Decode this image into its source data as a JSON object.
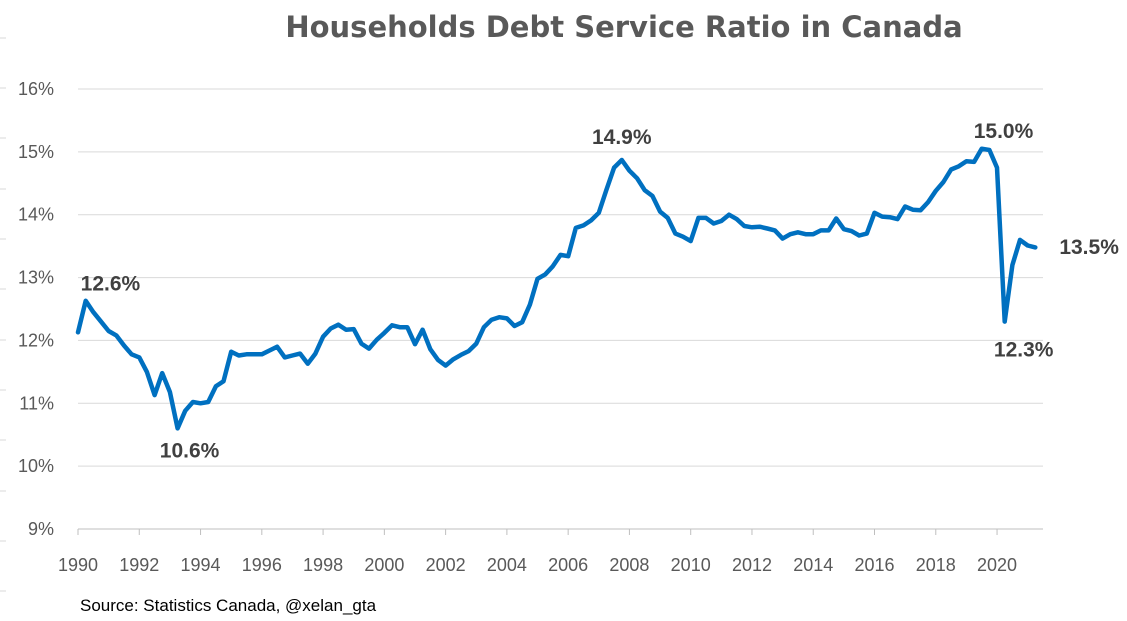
{
  "chart_data": {
    "type": "line",
    "title": "Households Debt Service Ratio in Canada",
    "xlabel": "",
    "ylabel": "",
    "xlim": [
      1990,
      2021.5
    ],
    "ylim": [
      9,
      16
    ],
    "grid": true,
    "legend": "none",
    "x_ticks": [
      1990,
      1992,
      1994,
      1996,
      1998,
      2000,
      2002,
      2004,
      2006,
      2008,
      2010,
      2012,
      2014,
      2016,
      2018,
      2020
    ],
    "x_tick_labels": [
      "1990",
      "1992",
      "1994",
      "1996",
      "1998",
      "2000",
      "2002",
      "2004",
      "2006",
      "2008",
      "2010",
      "2012",
      "2014",
      "2016",
      "2018",
      "2020"
    ],
    "y_ticks": [
      9,
      10,
      11,
      12,
      13,
      14,
      15,
      16
    ],
    "y_tick_labels": [
      "9%",
      "10%",
      "11%",
      "12%",
      "13%",
      "14%",
      "15%",
      "16%"
    ],
    "series": [
      {
        "name": "Debt service ratio (%)",
        "color": "#0070c0",
        "x": [
          1990.0,
          1990.25,
          1990.5,
          1990.75,
          1991.0,
          1991.25,
          1991.5,
          1991.75,
          1992.0,
          1992.25,
          1992.5,
          1992.75,
          1993.0,
          1993.25,
          1993.5,
          1993.75,
          1994.0,
          1994.25,
          1994.5,
          1994.75,
          1995.0,
          1995.25,
          1995.5,
          1995.75,
          1996.0,
          1996.25,
          1996.5,
          1996.75,
          1997.0,
          1997.25,
          1997.5,
          1997.75,
          1998.0,
          1998.25,
          1998.5,
          1998.75,
          1999.0,
          1999.25,
          1999.5,
          1999.75,
          2000.0,
          2000.25,
          2000.5,
          2000.75,
          2001.0,
          2001.25,
          2001.5,
          2001.75,
          2002.0,
          2002.25,
          2002.5,
          2002.75,
          2003.0,
          2003.25,
          2003.5,
          2003.75,
          2004.0,
          2004.25,
          2004.5,
          2004.75,
          2005.0,
          2005.25,
          2005.5,
          2005.75,
          2006.0,
          2006.25,
          2006.5,
          2006.75,
          2007.0,
          2007.25,
          2007.5,
          2007.75,
          2008.0,
          2008.25,
          2008.5,
          2008.75,
          2009.0,
          2009.25,
          2009.5,
          2009.75,
          2010.0,
          2010.25,
          2010.5,
          2010.75,
          2011.0,
          2011.25,
          2011.5,
          2011.75,
          2012.0,
          2012.25,
          2012.5,
          2012.75,
          2013.0,
          2013.25,
          2013.5,
          2013.75,
          2014.0,
          2014.25,
          2014.5,
          2014.75,
          2015.0,
          2015.25,
          2015.5,
          2015.75,
          2016.0,
          2016.25,
          2016.5,
          2016.75,
          2017.0,
          2017.25,
          2017.5,
          2017.75,
          2018.0,
          2018.25,
          2018.5,
          2018.75,
          2019.0,
          2019.25,
          2019.5,
          2019.75,
          2020.0,
          2020.25,
          2020.5,
          2020.75,
          2021.0,
          2021.25
        ],
        "values": [
          12.13,
          12.63,
          12.45,
          12.3,
          12.15,
          12.08,
          11.92,
          11.78,
          11.73,
          11.5,
          11.13,
          11.48,
          11.18,
          10.6,
          10.88,
          11.02,
          11.0,
          11.02,
          11.27,
          11.35,
          11.82,
          11.76,
          11.78,
          11.78,
          11.78,
          11.84,
          11.9,
          11.73,
          11.76,
          11.79,
          11.63,
          11.79,
          12.06,
          12.19,
          12.25,
          12.17,
          12.18,
          11.95,
          11.87,
          12.01,
          12.12,
          12.24,
          12.21,
          12.21,
          11.94,
          12.17,
          11.86,
          11.69,
          11.6,
          11.7,
          11.77,
          11.83,
          11.95,
          12.21,
          12.33,
          12.37,
          12.35,
          12.23,
          12.29,
          12.57,
          12.98,
          13.05,
          13.18,
          13.36,
          13.34,
          13.79,
          13.83,
          13.91,
          14.03,
          14.4,
          14.75,
          14.87,
          14.7,
          14.58,
          14.39,
          14.3,
          14.05,
          13.95,
          13.7,
          13.65,
          13.58,
          13.95,
          13.95,
          13.86,
          13.9,
          14.0,
          13.93,
          13.82,
          13.8,
          13.81,
          13.78,
          13.75,
          13.62,
          13.69,
          13.72,
          13.69,
          13.69,
          13.75,
          13.75,
          13.94,
          13.77,
          13.74,
          13.67,
          13.7,
          14.03,
          13.97,
          13.96,
          13.93,
          14.13,
          14.08,
          14.07,
          14.2,
          14.38,
          14.52,
          14.72,
          14.77,
          14.85,
          14.84,
          15.05,
          15.03,
          14.75,
          12.3,
          13.2,
          13.6,
          13.51,
          13.48
        ]
      }
    ],
    "annotations": [
      {
        "x": 1990.25,
        "y": 12.6,
        "text": "12.6%"
      },
      {
        "x": 1993.25,
        "y": 10.6,
        "text": "10.6%"
      },
      {
        "x": 2007.75,
        "y": 14.9,
        "text": "14.9%"
      },
      {
        "x": 2019.5,
        "y": 15.0,
        "text": "15.0%"
      },
      {
        "x": 2020.25,
        "y": 12.3,
        "text": "12.3%"
      },
      {
        "x": 2021.25,
        "y": 13.5,
        "text": "13.5%"
      }
    ]
  },
  "source": "Source: Statistics Canada, @xelan_gta"
}
